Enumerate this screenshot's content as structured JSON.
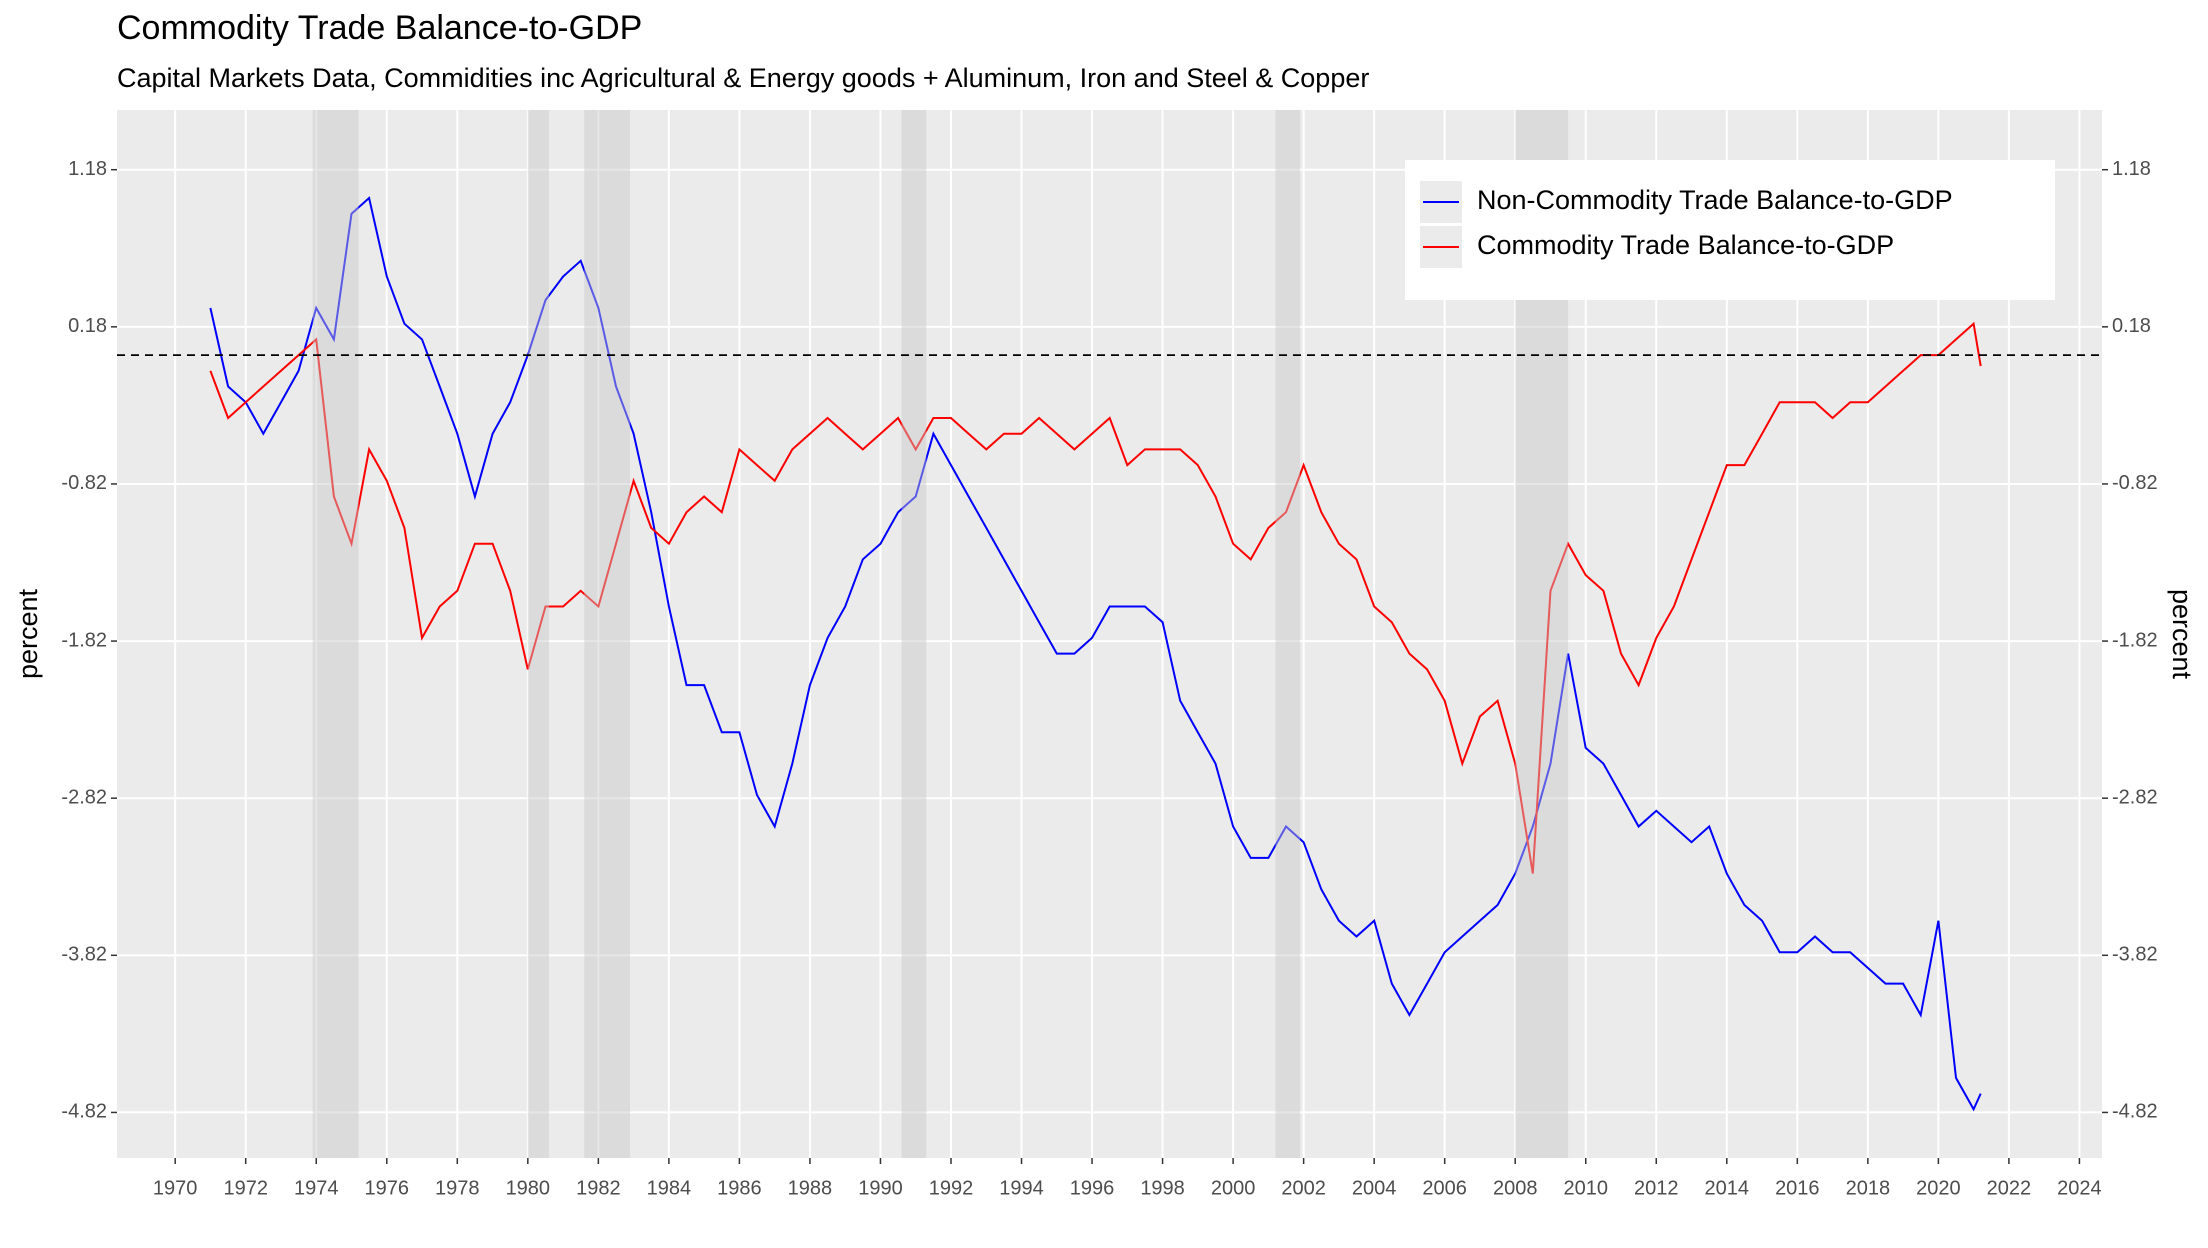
{
  "chart_data": {
    "type": "line",
    "title": "Commodity Trade Balance-to-GDP",
    "subtitle": "Capital Markets Data, Commidities inc Agricultural & Energy goods + Aluminum, Iron and Steel & Copper",
    "ylabel": "percent",
    "y2label": "percent",
    "x": [
      1971,
      1971.5,
      1972,
      1972.5,
      1973,
      1973.5,
      1974,
      1974.5,
      1975,
      1975.5,
      1976,
      1976.5,
      1977,
      1977.5,
      1978,
      1978.5,
      1979,
      1979.5,
      1980,
      1980.5,
      1981,
      1981.5,
      1982,
      1982.5,
      1983,
      1983.5,
      1984,
      1984.5,
      1985,
      1985.5,
      1986,
      1986.5,
      1987,
      1987.5,
      1988,
      1988.5,
      1989,
      1989.5,
      1990,
      1990.5,
      1991,
      1991.5,
      1992,
      1992.5,
      1993,
      1993.5,
      1994,
      1994.5,
      1995,
      1995.5,
      1996,
      1996.5,
      1997,
      1997.5,
      1998,
      1998.5,
      1999,
      1999.5,
      2000,
      2000.5,
      2001,
      2001.5,
      2002,
      2002.5,
      2003,
      2003.5,
      2004,
      2004.5,
      2005,
      2005.5,
      2006,
      2006.5,
      2007,
      2007.5,
      2008,
      2008.5,
      2009,
      2009.5,
      2010,
      2010.5,
      2011,
      2011.5,
      2012,
      2012.5,
      2013,
      2013.5,
      2014,
      2014.5,
      2015,
      2015.5,
      2016,
      2016.5,
      2017,
      2017.5,
      2018,
      2018.5,
      2019,
      2019.5,
      2020,
      2020.5,
      2021,
      2021.2
    ],
    "series": [
      {
        "name": "Non-Commodity Trade Balance-to-GDP",
        "color": "#0000ff",
        "values": [
          0.3,
          -0.2,
          -0.3,
          -0.5,
          -0.3,
          -0.1,
          0.3,
          0.1,
          0.9,
          1.0,
          0.5,
          0.2,
          0.1,
          -0.2,
          -0.5,
          -0.9,
          -0.5,
          -0.3,
          0.0,
          0.35,
          0.5,
          0.6,
          0.3,
          -0.2,
          -0.5,
          -1.0,
          -1.6,
          -2.1,
          -2.1,
          -2.4,
          -2.4,
          -2.8,
          -3.0,
          -2.6,
          -2.1,
          -1.8,
          -1.6,
          -1.3,
          -1.2,
          -1.0,
          -0.9,
          -0.5,
          -0.7,
          -0.9,
          -1.1,
          -1.3,
          -1.5,
          -1.7,
          -1.9,
          -1.9,
          -1.8,
          -1.6,
          -1.6,
          -1.6,
          -1.7,
          -2.2,
          -2.4,
          -2.6,
          -3.0,
          -3.2,
          -3.2,
          -3.0,
          -3.1,
          -3.4,
          -3.6,
          -3.7,
          -3.6,
          -4.0,
          -4.2,
          -4.0,
          -3.8,
          -3.7,
          -3.6,
          -3.5,
          -3.3,
          -3.0,
          -2.6,
          -1.9,
          -2.5,
          -2.6,
          -2.8,
          -3.0,
          -2.9,
          -3.0,
          -3.1,
          -3.0,
          -3.3,
          -3.5,
          -3.6,
          -3.8,
          -3.8,
          -3.7,
          -3.8,
          -3.8,
          -3.9,
          -4.0,
          -4.0,
          -4.2,
          -3.6,
          -4.6,
          -4.8,
          -4.7
        ]
      },
      {
        "name": "Commodity Trade Balance-to-GDP",
        "color": "#ff0000",
        "values": [
          -0.1,
          -0.4,
          -0.3,
          -0.2,
          -0.1,
          0.0,
          0.1,
          -0.9,
          -1.2,
          -0.6,
          -0.8,
          -1.1,
          -1.8,
          -1.6,
          -1.5,
          -1.2,
          -1.2,
          -1.5,
          -2.0,
          -1.6,
          -1.6,
          -1.5,
          -1.6,
          -1.2,
          -0.8,
          -1.1,
          -1.2,
          -1.0,
          -0.9,
          -1.0,
          -0.6,
          -0.7,
          -0.8,
          -0.6,
          -0.5,
          -0.4,
          -0.5,
          -0.6,
          -0.5,
          -0.4,
          -0.6,
          -0.4,
          -0.4,
          -0.5,
          -0.6,
          -0.5,
          -0.5,
          -0.4,
          -0.5,
          -0.6,
          -0.5,
          -0.4,
          -0.7,
          -0.6,
          -0.6,
          -0.6,
          -0.7,
          -0.9,
          -1.2,
          -1.3,
          -1.1,
          -1.0,
          -0.7,
          -1.0,
          -1.2,
          -1.3,
          -1.6,
          -1.7,
          -1.9,
          -2.0,
          -2.2,
          -2.6,
          -2.3,
          -2.2,
          -2.6,
          -3.3,
          -1.5,
          -1.2,
          -1.4,
          -1.5,
          -1.9,
          -2.1,
          -1.8,
          -1.6,
          -1.3,
          -1.0,
          -0.7,
          -0.7,
          -0.5,
          -0.3,
          -0.3,
          -0.3,
          -0.4,
          -0.3,
          -0.3,
          -0.2,
          -0.1,
          0.0,
          0.0,
          0.1,
          0.2,
          -0.07
        ]
      }
    ],
    "xlim": [
      1968.35,
      2024.64
    ],
    "xticks": [
      1970,
      1972,
      1974,
      1976,
      1978,
      1980,
      1982,
      1984,
      1986,
      1988,
      1990,
      1992,
      1994,
      1996,
      1998,
      2000,
      2002,
      2004,
      2006,
      2008,
      2010,
      2012,
      2014,
      2016,
      2018,
      2020,
      2022,
      2024
    ],
    "ylim": [
      -5.11,
      1.56
    ],
    "yticks": [
      -4.82,
      -3.82,
      -2.82,
      -1.82,
      -0.82,
      0.18,
      1.18
    ],
    "y2lim": [
      -5.11,
      1.56
    ],
    "y2ticks": [
      -4.82,
      -3.82,
      -2.82,
      -1.82,
      -0.82,
      0.18,
      1.18
    ],
    "reference_line": 0,
    "shaded_regions": [
      [
        1973.9,
        1975.2
      ],
      [
        1980.0,
        1980.6
      ],
      [
        1981.6,
        1982.9
      ],
      [
        1990.6,
        1991.3
      ],
      [
        2001.2,
        2001.9
      ],
      [
        2008.0,
        2009.5
      ]
    ],
    "grid": true,
    "legend_position": "top-right"
  }
}
